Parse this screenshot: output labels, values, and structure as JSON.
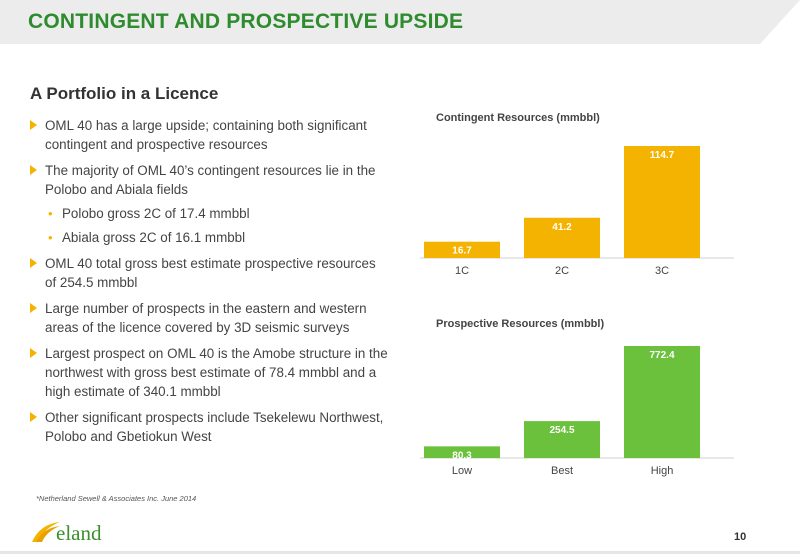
{
  "header": {
    "title": "CONTINGENT AND PROSPECTIVE UPSIDE"
  },
  "section": {
    "subtitle": "A Portfolio in a Licence"
  },
  "bullets": [
    "OML 40 has a large upside; containing both significant contingent and  prospective resources",
    "The majority of OML 40’s contingent resources lie in the Polobo and Abiala fields",
    "OML 40 total gross best estimate prospective resources of 254.5 mmbbl",
    "Large number of prospects in the eastern and western areas of the licence covered by 3D seismic surveys",
    "Largest prospect on OML 40 is the Amobe structure in the northwest with gross best estimate of 78.4 mmbbl and a high estimate of 340.1 mmbbl",
    "Other significant prospects include Tsekelewu Northwest, Polobo and Gbetiokun West"
  ],
  "sub_bullets": [
    "Polobo gross 2C of 17.4 mmbbl",
    "Abiala gross 2C of 16.1 mmbbl"
  ],
  "footnote": "*Netherland Sewell & Associates Inc. June 2014",
  "logo_text": "eland",
  "page_number": "10",
  "colors": {
    "title_green": "#2e8b2e",
    "bar_orange": "#f5b301",
    "bar_green": "#6bc13c",
    "bullet_marker": "#f5b301"
  },
  "chart_data": [
    {
      "type": "bar",
      "title": "Contingent Resources (mmbbl)",
      "categories": [
        "1C",
        "2C",
        "3C"
      ],
      "values": [
        16.7,
        41.2,
        114.7
      ],
      "value_labels": [
        "16.7",
        "41.2",
        "114.7"
      ],
      "color": "#f5b301",
      "ylim": [
        0,
        114.7
      ],
      "grid": false,
      "legend": "none"
    },
    {
      "type": "bar",
      "title": "Prospective Resources (mmbbl)",
      "categories": [
        "Low",
        "Best",
        "High"
      ],
      "values": [
        80.3,
        254.5,
        772.4
      ],
      "value_labels": [
        "80.3",
        "254.5",
        "772.4"
      ],
      "color": "#6bc13c",
      "ylim": [
        0,
        772.4
      ],
      "grid": false,
      "legend": "none"
    }
  ]
}
